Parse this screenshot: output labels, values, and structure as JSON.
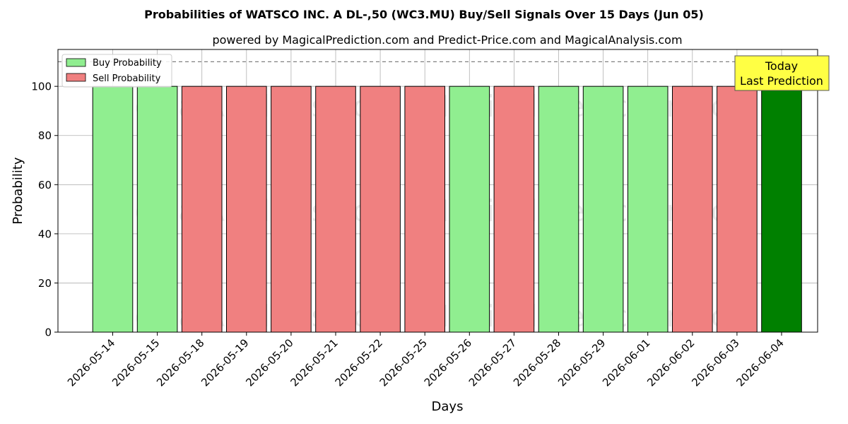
{
  "chart_data": {
    "type": "bar",
    "title": "Probabilities of WATSCO INC. A  DL-,50 (WC3.MU) Buy/Sell Signals Over 15 Days (Jun 05)",
    "subtitle": "powered by MagicalPrediction.com and Predict-Price.com and MagicalAnalysis.com",
    "xlabel": "Days",
    "ylabel": "Probability",
    "ylim": [
      0,
      115
    ],
    "yticks": [
      0,
      20,
      40,
      60,
      80,
      100
    ],
    "reference_line": 110,
    "grid": true,
    "legend_position": "top-left",
    "categories": [
      "2026-05-14",
      "2026-05-15",
      "2026-05-18",
      "2026-05-19",
      "2026-05-20",
      "2026-05-21",
      "2026-05-22",
      "2026-05-25",
      "2026-05-26",
      "2026-05-27",
      "2026-05-28",
      "2026-05-29",
      "2026-06-01",
      "2026-06-02",
      "2026-06-03",
      "2026-06-04"
    ],
    "values": [
      100,
      100,
      100,
      100,
      100,
      100,
      100,
      100,
      100,
      100,
      100,
      100,
      100,
      100,
      100,
      100
    ],
    "signals": [
      "buy",
      "buy",
      "sell",
      "sell",
      "sell",
      "sell",
      "sell",
      "sell",
      "buy",
      "sell",
      "buy",
      "buy",
      "buy",
      "sell",
      "sell",
      "today"
    ],
    "series": [
      {
        "name": "Buy Probability",
        "color": "#90ee90"
      },
      {
        "name": "Sell Probability",
        "color": "#f08080"
      }
    ],
    "today_color": "#008000",
    "annotation": {
      "line1": "Today",
      "line2": "Last Prediction",
      "color": "#ffff44"
    },
    "watermarks": [
      "MagicalAnalysis.com",
      "MagicalPrediction.com"
    ]
  }
}
